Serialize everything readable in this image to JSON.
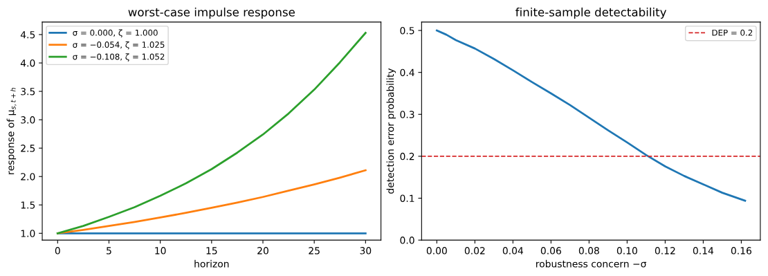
{
  "chart_data": [
    {
      "type": "line",
      "title": "worst-case impulse response",
      "xlabel": "horizon",
      "ylabel": "response of μ$_{s,t+h}$",
      "legend": "top left",
      "grid": false,
      "line_style": "solid",
      "marker": "none",
      "x": [
        0,
        2.5,
        5,
        7.5,
        10,
        12.5,
        15,
        17.5,
        20,
        22.5,
        25,
        27.5,
        30
      ],
      "xlim": [
        -1.5,
        31.5
      ],
      "xticks": [
        0,
        5,
        10,
        15,
        20,
        25,
        30
      ],
      "ylim": [
        0.88,
        4.72
      ],
      "yticks": [
        {
          "value": 1,
          "label": "1.0"
        },
        1.5,
        {
          "value": 2,
          "label": "2.0"
        },
        2.5,
        {
          "value": 3,
          "label": "3.0"
        },
        3.5,
        {
          "value": 4,
          "label": "4.0"
        },
        4.5
      ],
      "series": [
        {
          "name": "σ = 0.000, ζ = 1.000",
          "color": "#1f77b4",
          "values": [
            1,
            1,
            1,
            1,
            1,
            1,
            1,
            1,
            1,
            1,
            1,
            1,
            1
          ]
        },
        {
          "name": "σ = −0.054, ζ = 1.025",
          "color": "#ff7f0e",
          "values": [
            1,
            1.06,
            1.13,
            1.2,
            1.28,
            1.36,
            1.45,
            1.54,
            1.64,
            1.75,
            1.86,
            1.98,
            2.11
          ]
        },
        {
          "name": "σ = −0.108, ζ = 1.052",
          "color": "#2ca02c",
          "values": [
            1,
            1.13,
            1.29,
            1.46,
            1.66,
            1.88,
            2.13,
            2.42,
            2.74,
            3.11,
            3.53,
            4.01,
            4.53
          ]
        }
      ]
    },
    {
      "type": "line",
      "title": "finite-sample detectability",
      "xlabel": "robustness concern −σ",
      "ylabel": "detection error probability",
      "legend": "top right",
      "grid": false,
      "line_style": "solid",
      "marker": "none",
      "x": [
        0,
        0.005,
        0.01,
        0.02,
        0.03,
        0.04,
        0.05,
        0.06,
        0.07,
        0.08,
        0.09,
        0.1,
        0.11,
        0.12,
        0.13,
        0.14,
        0.15,
        0.162
      ],
      "xlim": [
        -0.008,
        0.17
      ],
      "xticks": [
        {
          "value": 0,
          "label": "0.00"
        },
        0.02,
        0.04,
        0.06,
        0.08,
        {
          "value": 0.1,
          "label": "0.10"
        },
        0.12,
        0.14,
        0.16
      ],
      "ylim": [
        0,
        0.52
      ],
      "yticks": [
        {
          "value": 0,
          "label": "0.0"
        },
        0.1,
        0.2,
        0.3,
        0.4,
        0.5
      ],
      "series": [
        {
          "color": "#1f77b4",
          "values": [
            0.5,
            0.49,
            0.477,
            0.457,
            0.432,
            0.405,
            0.377,
            0.35,
            0.322,
            0.292,
            0.262,
            0.233,
            0.203,
            0.176,
            0.153,
            0.133,
            0.113,
            0.094
          ]
        }
      ],
      "ref_lines": [
        {
          "axis": "y",
          "value": 0.2,
          "label": "DEP = 0.2",
          "color": "#d62728",
          "line_style": "dashed"
        }
      ]
    }
  ]
}
